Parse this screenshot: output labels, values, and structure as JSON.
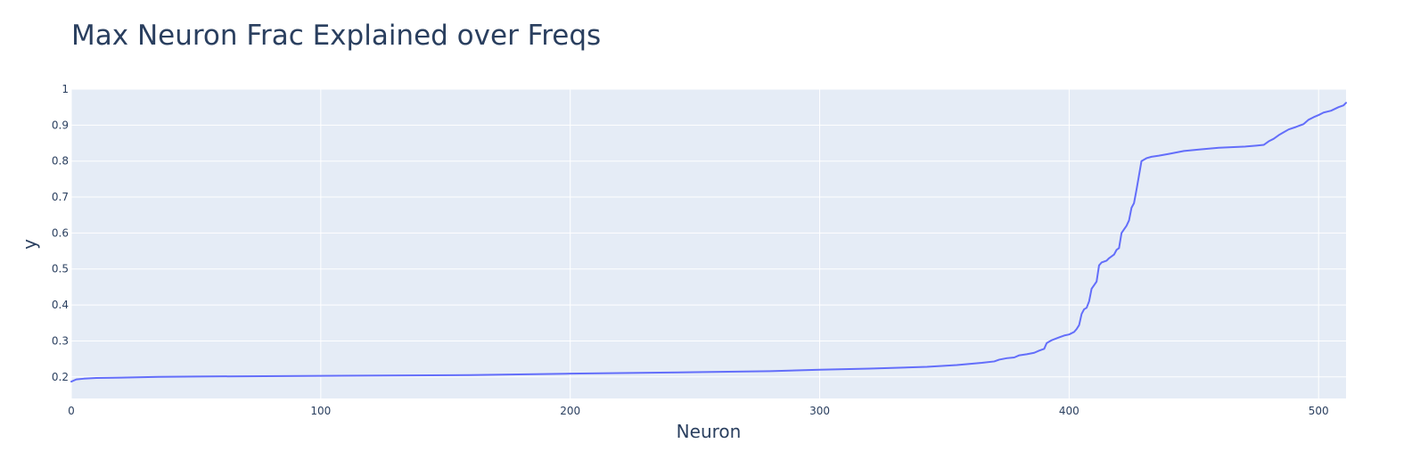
{
  "chart_data": {
    "type": "line",
    "title": "Max Neuron Frac Explained over Freqs",
    "xlabel": "Neuron",
    "ylabel": "y",
    "xlim": [
      0,
      511
    ],
    "ylim": [
      0.14,
      1.0
    ],
    "x_ticks": [
      0,
      100,
      200,
      300,
      400,
      500
    ],
    "y_ticks": [
      0.2,
      0.3,
      0.4,
      0.5,
      0.6,
      0.7,
      0.8,
      0.9,
      1
    ],
    "grid": true,
    "colors": {
      "plot_bg": "#e5ecf6",
      "grid": "#ffffff",
      "line": "#636efa",
      "text": "#2a3f5f"
    },
    "series": [
      {
        "points": [
          [
            0,
            0.187
          ],
          [
            2,
            0.193
          ],
          [
            5,
            0.195
          ],
          [
            10,
            0.197
          ],
          [
            20,
            0.198
          ],
          [
            35,
            0.2
          ],
          [
            50,
            0.201
          ],
          [
            100,
            0.203
          ],
          [
            160,
            0.205
          ],
          [
            200,
            0.209
          ],
          [
            250,
            0.213
          ],
          [
            280,
            0.216
          ],
          [
            300,
            0.22
          ],
          [
            320,
            0.223
          ],
          [
            343,
            0.228
          ],
          [
            355,
            0.233
          ],
          [
            365,
            0.239
          ],
          [
            370,
            0.243
          ],
          [
            372,
            0.248
          ],
          [
            375,
            0.252
          ],
          [
            378,
            0.254
          ],
          [
            380,
            0.26
          ],
          [
            383,
            0.263
          ],
          [
            386,
            0.267
          ],
          [
            388,
            0.273
          ],
          [
            390,
            0.278
          ],
          [
            391,
            0.294
          ],
          [
            393,
            0.302
          ],
          [
            396,
            0.31
          ],
          [
            398,
            0.315
          ],
          [
            400,
            0.318
          ],
          [
            402,
            0.325
          ],
          [
            403,
            0.333
          ],
          [
            404,
            0.344
          ],
          [
            405,
            0.375
          ],
          [
            406,
            0.388
          ],
          [
            407,
            0.392
          ],
          [
            408,
            0.41
          ],
          [
            409,
            0.445
          ],
          [
            410,
            0.455
          ],
          [
            411,
            0.465
          ],
          [
            412,
            0.51
          ],
          [
            413,
            0.518
          ],
          [
            415,
            0.523
          ],
          [
            416,
            0.53
          ],
          [
            418,
            0.54
          ],
          [
            419,
            0.553
          ],
          [
            420,
            0.558
          ],
          [
            421,
            0.6
          ],
          [
            422,
            0.61
          ],
          [
            423,
            0.62
          ],
          [
            424,
            0.635
          ],
          [
            425,
            0.67
          ],
          [
            426,
            0.683
          ],
          [
            427,
            0.72
          ],
          [
            428,
            0.76
          ],
          [
            429,
            0.8
          ],
          [
            431,
            0.808
          ],
          [
            433,
            0.812
          ],
          [
            436,
            0.815
          ],
          [
            440,
            0.82
          ],
          [
            446,
            0.828
          ],
          [
            452,
            0.832
          ],
          [
            460,
            0.837
          ],
          [
            470,
            0.84
          ],
          [
            475,
            0.843
          ],
          [
            478,
            0.845
          ],
          [
            480,
            0.855
          ],
          [
            482,
            0.862
          ],
          [
            484,
            0.872
          ],
          [
            486,
            0.88
          ],
          [
            488,
            0.888
          ],
          [
            491,
            0.895
          ],
          [
            494,
            0.903
          ],
          [
            496,
            0.915
          ],
          [
            498,
            0.922
          ],
          [
            500,
            0.928
          ],
          [
            502,
            0.935
          ],
          [
            505,
            0.94
          ],
          [
            508,
            0.95
          ],
          [
            510,
            0.955
          ],
          [
            511,
            0.962
          ]
        ]
      }
    ]
  }
}
